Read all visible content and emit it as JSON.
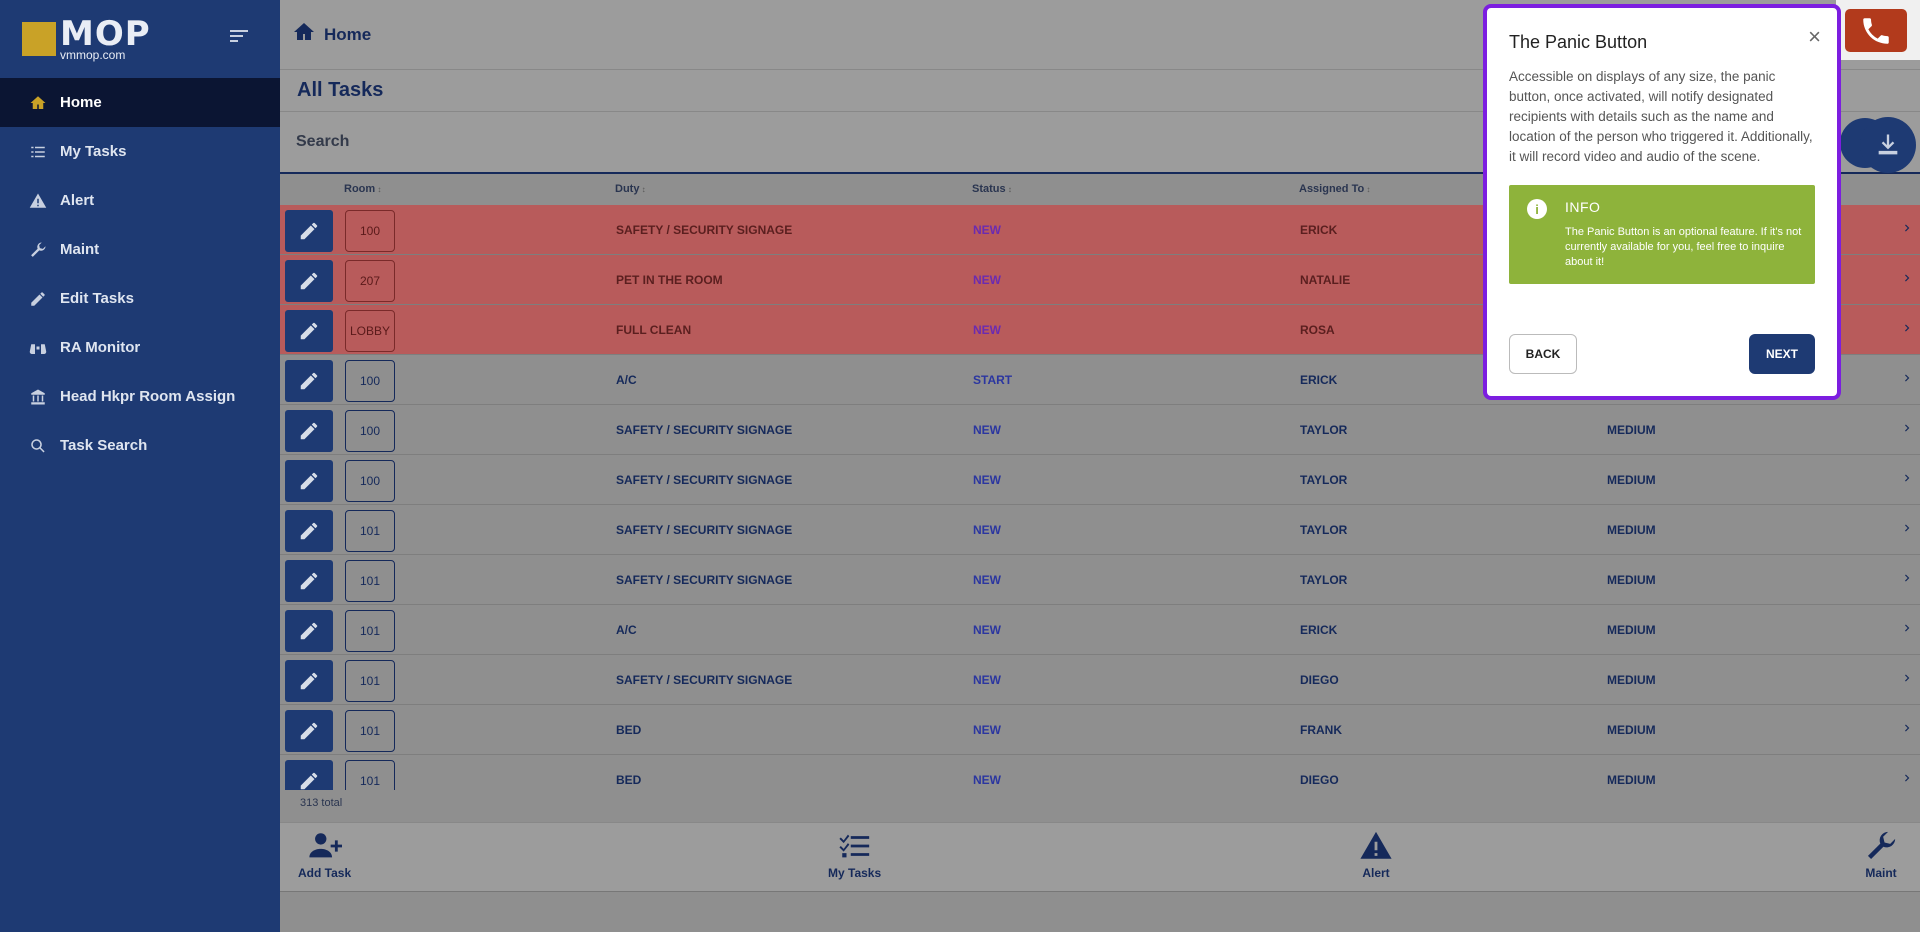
{
  "logo": {
    "main": "MOP",
    "sub": "vmmop.com"
  },
  "sidebar": {
    "items": [
      {
        "label": "Home",
        "icon": "home-icon"
      },
      {
        "label": "My Tasks",
        "icon": "list-icon"
      },
      {
        "label": "Alert",
        "icon": "warning-icon"
      },
      {
        "label": "Maint",
        "icon": "wrench-icon"
      },
      {
        "label": "Edit Tasks",
        "icon": "edit-icon"
      },
      {
        "label": "RA Monitor",
        "icon": "binoculars-icon"
      },
      {
        "label": "Head Hkpr Room Assign",
        "icon": "building-icon"
      },
      {
        "label": "Task Search",
        "icon": "search-icon"
      }
    ]
  },
  "header": {
    "title": "Home"
  },
  "page": {
    "title": "All Tasks",
    "search_label": "Search",
    "total": "313 total"
  },
  "table": {
    "columns": [
      "Room",
      "Duty",
      "Status",
      "Assigned To"
    ],
    "rows": [
      {
        "room": "100",
        "duty": "SAFETY / SECURITY SIGNAGE",
        "status": "NEW",
        "assigned": "ERICK",
        "priority": ""
      },
      {
        "room": "207",
        "duty": "PET IN THE ROOM",
        "status": "NEW",
        "assigned": "NATALIE",
        "priority": ""
      },
      {
        "room": "LOBBY",
        "duty": "FULL CLEAN",
        "status": "NEW",
        "assigned": "ROSA",
        "priority": ""
      },
      {
        "room": "100",
        "duty": "A/C",
        "status": "START",
        "assigned": "ERICK",
        "priority": ""
      },
      {
        "room": "100",
        "duty": "SAFETY / SECURITY SIGNAGE",
        "status": "NEW",
        "assigned": "TAYLOR",
        "priority": "MEDIUM"
      },
      {
        "room": "100",
        "duty": "SAFETY / SECURITY SIGNAGE",
        "status": "NEW",
        "assigned": "TAYLOR",
        "priority": "MEDIUM"
      },
      {
        "room": "101",
        "duty": "SAFETY / SECURITY SIGNAGE",
        "status": "NEW",
        "assigned": "TAYLOR",
        "priority": "MEDIUM"
      },
      {
        "room": "101",
        "duty": "SAFETY / SECURITY SIGNAGE",
        "status": "NEW",
        "assigned": "TAYLOR",
        "priority": "MEDIUM"
      },
      {
        "room": "101",
        "duty": "A/C",
        "status": "NEW",
        "assigned": "ERICK",
        "priority": "MEDIUM"
      },
      {
        "room": "101",
        "duty": "SAFETY / SECURITY SIGNAGE",
        "status": "NEW",
        "assigned": "DIEGO",
        "priority": "MEDIUM"
      },
      {
        "room": "101",
        "duty": "BED",
        "status": "NEW",
        "assigned": "FRANK",
        "priority": "MEDIUM"
      },
      {
        "room": "101",
        "duty": "BED",
        "status": "NEW",
        "assigned": "DIEGO",
        "priority": "MEDIUM"
      }
    ]
  },
  "bottombar": {
    "add_task": "Add Task",
    "my_tasks": "My Tasks",
    "alert": "Alert",
    "maint": "Maint"
  },
  "modal": {
    "title": "The Panic Button",
    "close": "×",
    "body": "Accessible on displays of any size, the panic button, once activated, will notify designated recipients with details such as the name and location of the person who triggered it. Additionally, it will record video and audio of the scene.",
    "info_title": "INFO",
    "info_text": "The Panic Button is an optional feature. If it's not currently available for you, feel free to inquire about it!",
    "back": "BACK",
    "next": "NEXT"
  },
  "colors": {
    "brand": "#1e3a73",
    "highlight_row": "#b85b5b",
    "modal_border": "#7c1ee0",
    "info": "#8eb33b",
    "panic": "#b23a1c"
  }
}
